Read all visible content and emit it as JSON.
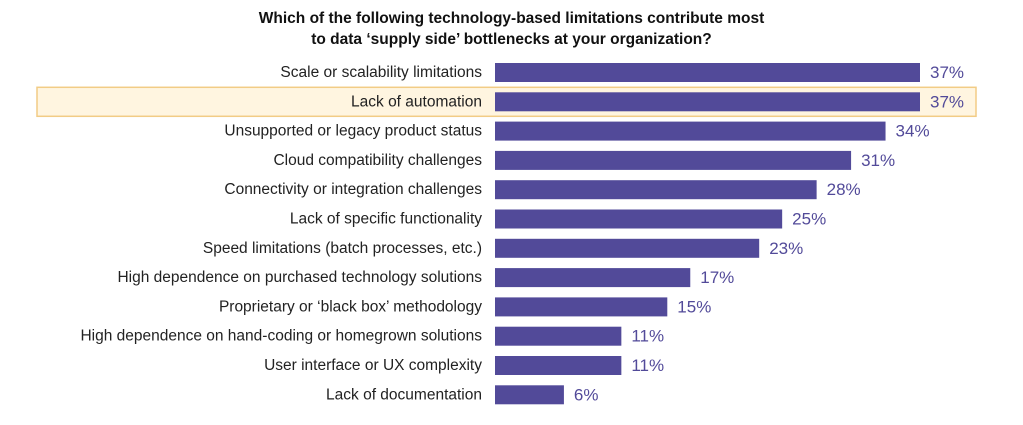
{
  "chart_data": {
    "type": "bar",
    "orientation": "horizontal",
    "title": [
      "Which of the following technology-based limitations contribute most",
      "to data ‘supply side’ bottlenecks at your organization?"
    ],
    "categories": [
      "Scale or scalability limitations",
      "Lack of automation",
      "Unsupported or legacy product status",
      "Cloud compatibility challenges",
      "Connectivity or integration challenges",
      "Lack of specific functionality",
      "Speed limitations (batch processes, etc.)",
      "High dependence on purchased technology solutions",
      "Proprietary or ‘black box’ methodology",
      "High dependence on hand-coding or homegrown solutions",
      "User interface or UX complexity",
      "Lack of documentation"
    ],
    "values": [
      37,
      37,
      34,
      31,
      28,
      25,
      23,
      17,
      15,
      11,
      11,
      6
    ],
    "value_labels": [
      "37%",
      "37%",
      "34%",
      "31%",
      "28%",
      "25%",
      "23%",
      "17%",
      "15%",
      "11%",
      "11%",
      "6%"
    ],
    "highlighted_category": "Lack of automation",
    "xlim": [
      0,
      37
    ],
    "grid": false,
    "legend": "none",
    "colors": {
      "bar": "#524a99",
      "value_label": "#524a99",
      "highlight_fill": "#fff5e0",
      "highlight_border": "#f2cc85"
    }
  }
}
